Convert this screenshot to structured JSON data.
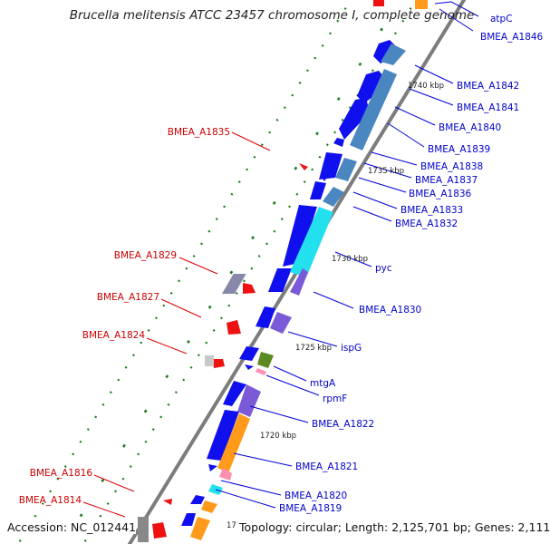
{
  "title": "Brucella melitensis ATCC 23457 chromosome I, complete genome",
  "accession": "Accession: NC_012441",
  "summary": "Topology: circular; Length: 2,125,701 bp; Genes: 2,111",
  "colors": {
    "forward": "#1010ee",
    "reverse_red": "#ee1111",
    "steel": "#4a86c0",
    "cyan": "#22e0ee",
    "purple": "#7a5ad6",
    "orange": "#ff9a1a",
    "olive": "#5a8a20",
    "pink": "#ff8fb0",
    "gray": "#a0a0a0",
    "gc_dots": "#1a7a1a",
    "label_blue": "#0000cc",
    "label_red": "#cc0000"
  },
  "kbp_ticks": [
    "1740 kbp",
    "1735 kbp",
    "1730 kbp",
    "1725 kbp",
    "1720 kbp",
    "17"
  ],
  "forward_labels": [
    "atpC",
    "BMEA_A1846",
    "BMEA_A1842",
    "BMEA_A1841",
    "BMEA_A1840",
    "BMEA_A1839",
    "BMEA_A1838",
    "BMEA_A1837",
    "BMEA_A1836",
    "BMEA_A1833",
    "BMEA_A1832",
    "pyc",
    "BMEA_A1830",
    "ispG",
    "mtgA",
    "rpmF",
    "BMEA_A1822",
    "BMEA_A1821",
    "BMEA_A1820",
    "BMEA_A1819"
  ],
  "reverse_labels": [
    "BMEA_A1835",
    "BMEA_A1829",
    "BMEA_A1827",
    "BMEA_A1824",
    "BMEA_A1816",
    "BMEA_A1814"
  ]
}
